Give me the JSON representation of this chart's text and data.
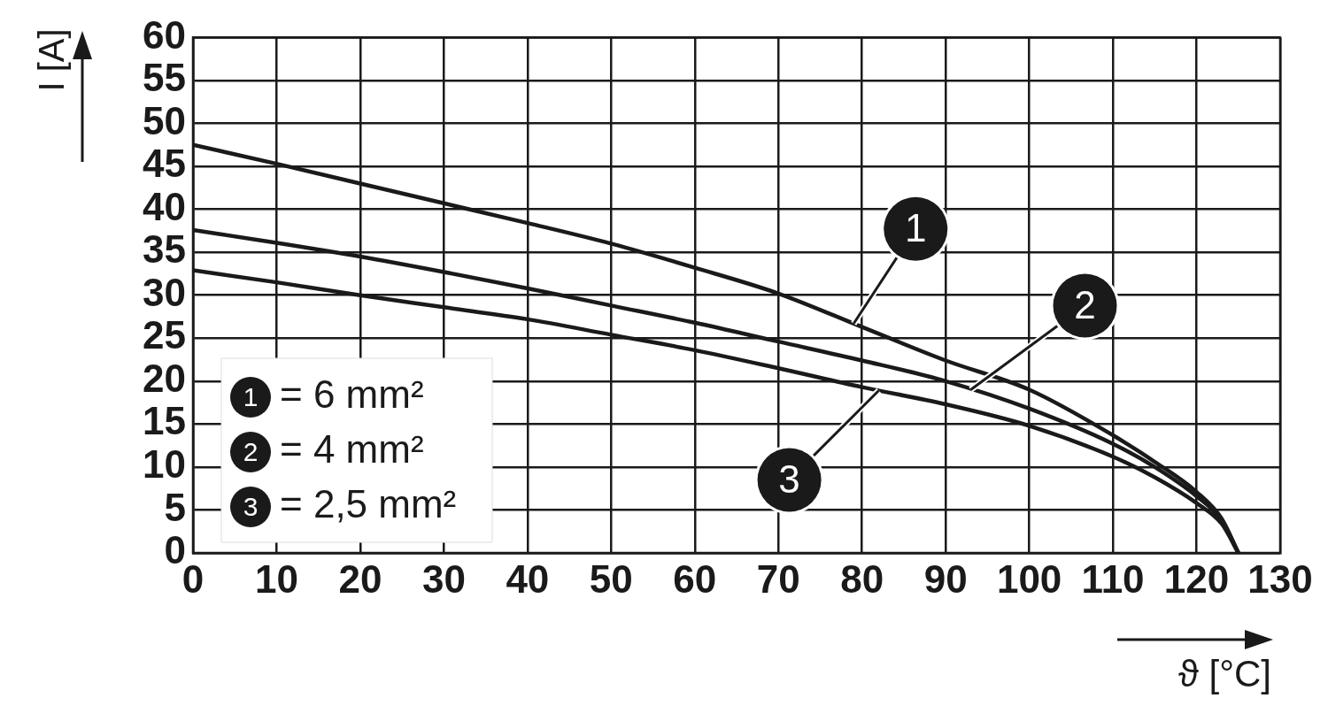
{
  "chart_data": {
    "type": "line",
    "xlabel": "ϑ [°C]",
    "ylabel": "I [A]",
    "xlim": [
      0,
      130
    ],
    "xticks": [
      0,
      10,
      20,
      30,
      40,
      50,
      60,
      70,
      80,
      90,
      100,
      110,
      120,
      130
    ],
    "ylim": [
      0,
      60
    ],
    "yticks": [
      0,
      5,
      10,
      15,
      20,
      25,
      30,
      35,
      40,
      45,
      50,
      55,
      60
    ],
    "grid": true,
    "legend": "bottom left",
    "marker": "none",
    "line_style": "solid",
    "series": [
      {
        "name": "= 6 mm²",
        "color": "#1a1a1a",
        "x": [
          0,
          10,
          20,
          30,
          40,
          50,
          60,
          70,
          80,
          90,
          100,
          110,
          115,
          120,
          123,
          125
        ],
        "values": [
          47.5,
          45.3,
          43,
          40.7,
          38.4,
          36,
          33.2,
          30.2,
          26.3,
          22.4,
          19,
          13.7,
          10.6,
          7.1,
          4,
          0
        ]
      },
      {
        "name": "= 4 mm²",
        "color": "#1a1a1a",
        "x": [
          0,
          10,
          20,
          30,
          40,
          50,
          60,
          70,
          80,
          90,
          100,
          110,
          115,
          120,
          123,
          125
        ],
        "values": [
          37.6,
          36.1,
          34.5,
          32.7,
          30.8,
          28.8,
          26.8,
          24.6,
          22.4,
          20,
          16.8,
          12.7,
          10,
          6.6,
          3.8,
          0
        ]
      },
      {
        "name": "= 2,5 mm²",
        "color": "#1a1a1a",
        "x": [
          0,
          10,
          20,
          30,
          40,
          50,
          60,
          70,
          80,
          90,
          100,
          110,
          115,
          120,
          123,
          125
        ],
        "values": [
          32.9,
          31.5,
          30,
          28.6,
          27.2,
          25.4,
          23.6,
          21.5,
          19.3,
          17.3,
          14.8,
          11.2,
          8.8,
          5.8,
          3.4,
          0
        ]
      }
    ],
    "annotations": [
      {
        "text": "1",
        "x": 79,
        "y": 26.7
      },
      {
        "text": "2",
        "x": 93,
        "y": 19
      },
      {
        "text": "3",
        "x": 82,
        "y": 18.9
      }
    ]
  }
}
